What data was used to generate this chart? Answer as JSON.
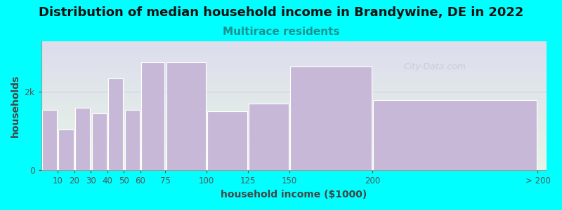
{
  "title": "Distribution of median household income in Brandywine, DE in 2022",
  "subtitle": "Multirace residents",
  "xlabel": "household income ($1000)",
  "ylabel": "households",
  "background_color": "#00FFFF",
  "plot_bg_top": "#e6f5e6",
  "plot_bg_bottom": "#dddded",
  "bar_color": "#c8b8d8",
  "bar_edge_color": "#ffffff",
  "bar_left_edges": [
    0,
    10,
    20,
    30,
    40,
    50,
    60,
    75,
    100,
    125,
    150,
    200
  ],
  "bar_right_edges": [
    10,
    20,
    30,
    40,
    50,
    60,
    75,
    100,
    125,
    150,
    200,
    300
  ],
  "bar_heights": [
    1550,
    1050,
    1600,
    1450,
    2350,
    1550,
    2750,
    2750,
    1500,
    1700,
    2650,
    1800
  ],
  "tick_positions": [
    10,
    20,
    30,
    40,
    50,
    60,
    75,
    100,
    125,
    150,
    200,
    300
  ],
  "tick_labels": [
    "10",
    "20",
    "30",
    "40",
    "50",
    "60",
    "75",
    "100",
    "125",
    "150",
    "200",
    "> 200"
  ],
  "xlim": [
    0,
    305
  ],
  "ylim": [
    0,
    3300
  ],
  "ytick_values": [
    0,
    2000
  ],
  "ytick_labels": [
    "0",
    "2k"
  ],
  "title_fontsize": 13,
  "subtitle_fontsize": 11,
  "subtitle_color": "#1a9090",
  "axis_label_fontsize": 10,
  "watermark_text": "City-Data.com",
  "watermark_color": "#b0b0c8",
  "watermark_alpha": 0.45
}
